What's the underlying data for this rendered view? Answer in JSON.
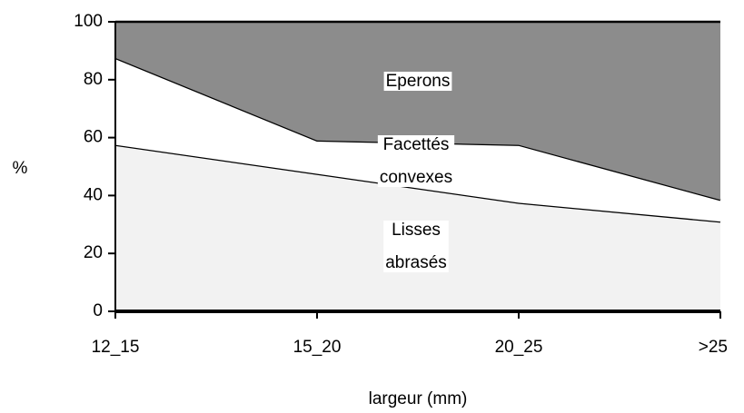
{
  "chart_data": {
    "type": "stacked_area",
    "categories": [
      "12_15",
      "15_20",
      "20_25",
      ">25"
    ],
    "series": [
      {
        "name": "Lisses abrasés",
        "color": "#f2f2f2",
        "values": [
          57.5,
          47.5,
          37.5,
          31
        ]
      },
      {
        "name": "Facettés convexes",
        "color": "#ffffff",
        "values": [
          30,
          11.5,
          20,
          7.5
        ]
      },
      {
        "name": "Eperons",
        "color": "#8c8c8c",
        "values": [
          12.5,
          41,
          42.5,
          61.5
        ]
      }
    ],
    "xlabel": "largeur (mm)",
    "ylabel": "%",
    "ylim": [
      0,
      100
    ],
    "yticks": [
      0,
      20,
      40,
      60,
      80,
      100
    ]
  }
}
